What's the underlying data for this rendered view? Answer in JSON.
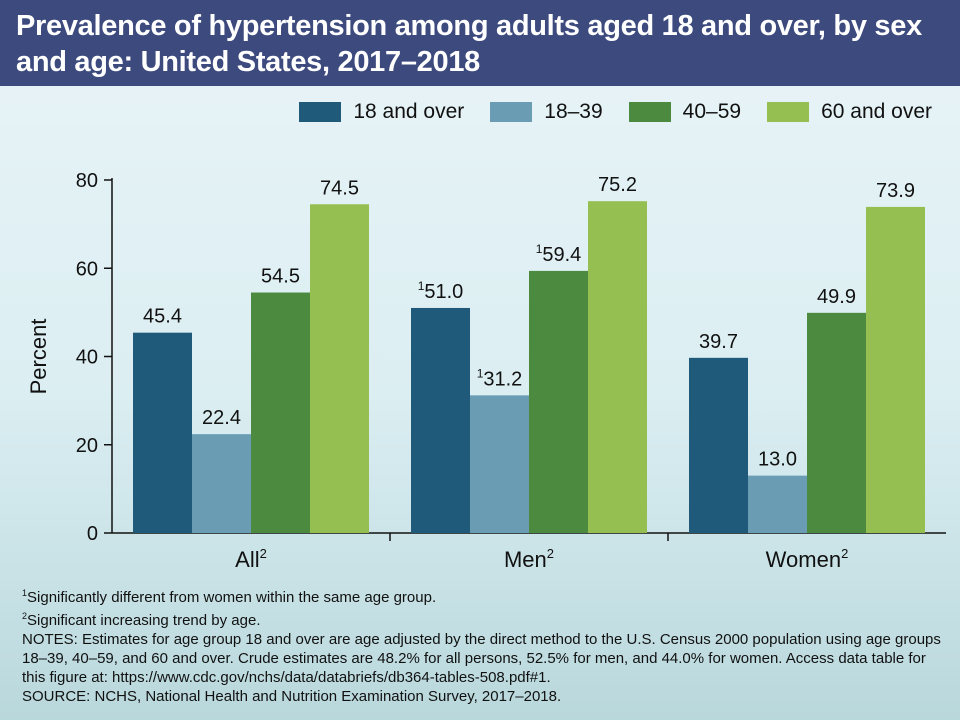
{
  "title": "Prevalence of hypertension among adults aged 18 and over, by sex and age: United States, 2017–2018",
  "colors": {
    "18 and over": "#1f5a7a",
    "18–39": "#6a9db3",
    "40–59": "#4c8a3f",
    "60 and over": "#96bf52"
  },
  "chart_data": {
    "type": "bar",
    "categories": [
      "All",
      "Men",
      "Women"
    ],
    "category_sups": [
      "2",
      "2",
      "2"
    ],
    "series": [
      {
        "name": "18 and over",
        "values": [
          45.4,
          51.0,
          39.7
        ],
        "label_sups": [
          "",
          "1",
          ""
        ]
      },
      {
        "name": "18–39",
        "values": [
          22.4,
          31.2,
          13.0
        ],
        "label_sups": [
          "",
          "1",
          ""
        ]
      },
      {
        "name": "40–59",
        "values": [
          54.5,
          59.4,
          49.9
        ],
        "label_sups": [
          "",
          "1",
          ""
        ]
      },
      {
        "name": "60 and over",
        "values": [
          74.5,
          75.2,
          73.9
        ],
        "label_sups": [
          "",
          "",
          ""
        ]
      }
    ],
    "ylabel": "Percent",
    "ylim": [
      0,
      80
    ],
    "yticks": [
      0,
      20,
      40,
      60,
      80
    ],
    "legend_position": "top-right",
    "grid": false
  },
  "footnotes": {
    "note1_sup": "1",
    "note1": "Significantly different from women within the same age group.",
    "note2_sup": "2",
    "note2": "Significant increasing trend by age.",
    "notes": "NOTES: Estimates for age group 18 and over are age adjusted by the direct method to the U.S. Census 2000 population using age groups 18–39, 40–59, and 60 and over. Crude estimates are 48.2% for all persons, 52.5% for men, and 44.0% for women. Access data table for this figure at: https://www.cdc.gov/nchs/data/databriefs/db364-tables-508.pdf#1.",
    "source": "SOURCE: NCHS, National Health and Nutrition Examination Survey, 2017–2018."
  }
}
